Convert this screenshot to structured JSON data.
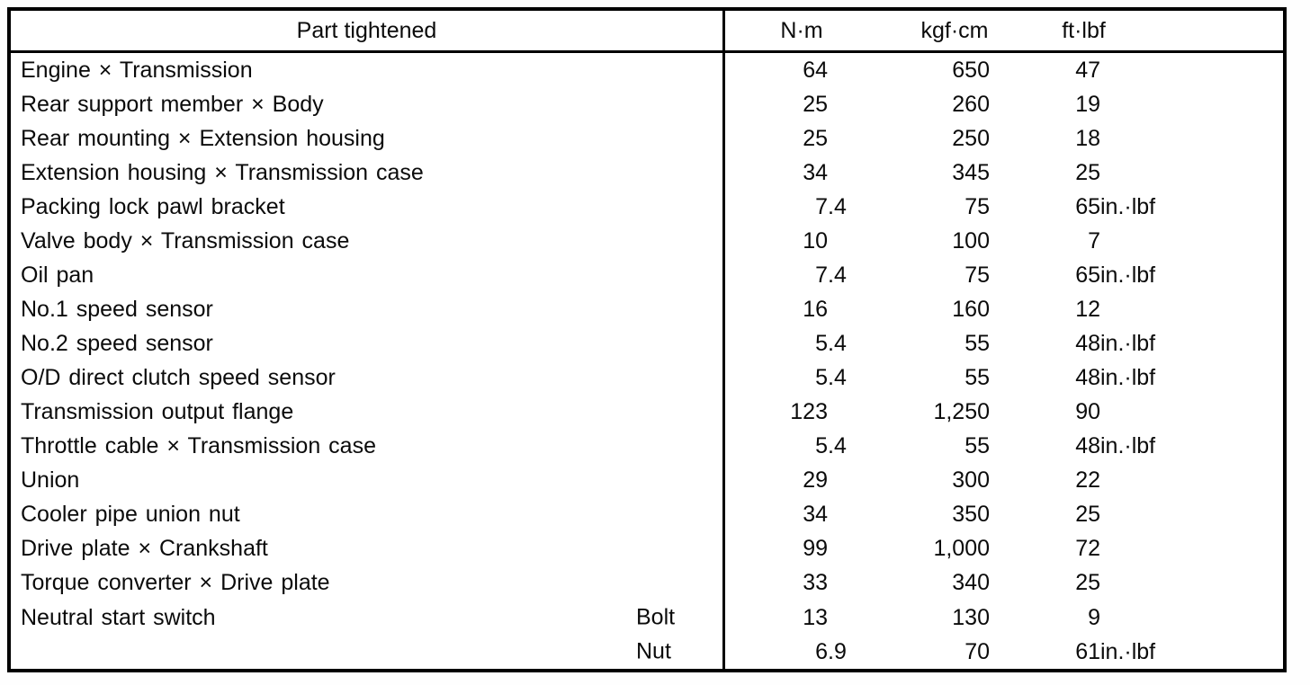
{
  "table": {
    "header": {
      "part_col": "Part tightened",
      "unit_cols": [
        "N·m",
        "kgf·cm",
        "ft·lbf"
      ]
    },
    "rows": [
      {
        "part": "Engine × Transmission",
        "sub": "",
        "nm": {
          "v": "64",
          "s": ""
        },
        "kgfcm": {
          "v": "650",
          "s": ""
        },
        "ftlbf": {
          "v": "47",
          "s": ""
        }
      },
      {
        "part": "Rear support member × Body",
        "sub": "",
        "nm": {
          "v": "25",
          "s": ""
        },
        "kgfcm": {
          "v": "260",
          "s": ""
        },
        "ftlbf": {
          "v": "19",
          "s": ""
        }
      },
      {
        "part": "Rear mounting × Extension housing",
        "sub": "",
        "nm": {
          "v": "25",
          "s": ""
        },
        "kgfcm": {
          "v": "250",
          "s": ""
        },
        "ftlbf": {
          "v": "18",
          "s": ""
        }
      },
      {
        "part": "Extension housing × Transmission case",
        "sub": "",
        "nm": {
          "v": "34",
          "s": ""
        },
        "kgfcm": {
          "v": "345",
          "s": ""
        },
        "ftlbf": {
          "v": "25",
          "s": ""
        }
      },
      {
        "part": "Packing lock pawl bracket",
        "sub": "",
        "nm": {
          "v": "7",
          "s": ".4"
        },
        "kgfcm": {
          "v": "75",
          "s": ""
        },
        "ftlbf": {
          "v": "65",
          "s": " in.·lbf"
        }
      },
      {
        "part": "Valve body × Transmission case",
        "sub": "",
        "nm": {
          "v": "10",
          "s": ""
        },
        "kgfcm": {
          "v": "100",
          "s": ""
        },
        "ftlbf": {
          "v": "7",
          "s": ""
        }
      },
      {
        "part": "Oil pan",
        "sub": "",
        "nm": {
          "v": "7",
          "s": ".4"
        },
        "kgfcm": {
          "v": "75",
          "s": ""
        },
        "ftlbf": {
          "v": "65",
          "s": " in.·lbf"
        }
      },
      {
        "part": "No.1 speed sensor",
        "sub": "",
        "nm": {
          "v": "16",
          "s": ""
        },
        "kgfcm": {
          "v": "160",
          "s": ""
        },
        "ftlbf": {
          "v": "12",
          "s": ""
        }
      },
      {
        "part": "No.2 speed sensor",
        "sub": "",
        "nm": {
          "v": "5",
          "s": ".4"
        },
        "kgfcm": {
          "v": "55",
          "s": ""
        },
        "ftlbf": {
          "v": "48",
          "s": " in.·lbf"
        }
      },
      {
        "part": "O/D direct clutch speed sensor",
        "sub": "",
        "nm": {
          "v": "5",
          "s": ".4"
        },
        "kgfcm": {
          "v": "55",
          "s": ""
        },
        "ftlbf": {
          "v": "48",
          "s": " in.·lbf"
        }
      },
      {
        "part": "Transmission output flange",
        "sub": "",
        "nm": {
          "v": "123",
          "s": ""
        },
        "kgfcm": {
          "v": "1,250",
          "s": ""
        },
        "ftlbf": {
          "v": "90",
          "s": ""
        }
      },
      {
        "part": "Throttle cable × Transmission case",
        "sub": "",
        "nm": {
          "v": "5",
          "s": ".4"
        },
        "kgfcm": {
          "v": "55",
          "s": ""
        },
        "ftlbf": {
          "v": "48",
          "s": " in.·lbf"
        }
      },
      {
        "part": "Union",
        "sub": "",
        "nm": {
          "v": "29",
          "s": ""
        },
        "kgfcm": {
          "v": "300",
          "s": ""
        },
        "ftlbf": {
          "v": "22",
          "s": ""
        }
      },
      {
        "part": "Cooler pipe union nut",
        "sub": "",
        "nm": {
          "v": "34",
          "s": ""
        },
        "kgfcm": {
          "v": "350",
          "s": ""
        },
        "ftlbf": {
          "v": "25",
          "s": ""
        }
      },
      {
        "part": "Drive plate × Crankshaft",
        "sub": "",
        "nm": {
          "v": "99",
          "s": ""
        },
        "kgfcm": {
          "v": "1,000",
          "s": ""
        },
        "ftlbf": {
          "v": "72",
          "s": ""
        }
      },
      {
        "part": "Torque converter × Drive plate",
        "sub": "",
        "nm": {
          "v": "33",
          "s": ""
        },
        "kgfcm": {
          "v": "340",
          "s": ""
        },
        "ftlbf": {
          "v": "25",
          "s": ""
        }
      },
      {
        "part": "Neutral start switch",
        "sub": "Bolt",
        "nm": {
          "v": "13",
          "s": ""
        },
        "kgfcm": {
          "v": "130",
          "s": ""
        },
        "ftlbf": {
          "v": "9",
          "s": ""
        }
      },
      {
        "part": "",
        "sub": "Nut",
        "nm": {
          "v": "6",
          "s": ".9"
        },
        "kgfcm": {
          "v": "70",
          "s": ""
        },
        "ftlbf": {
          "v": "61",
          "s": " in.·lbf"
        }
      }
    ]
  }
}
